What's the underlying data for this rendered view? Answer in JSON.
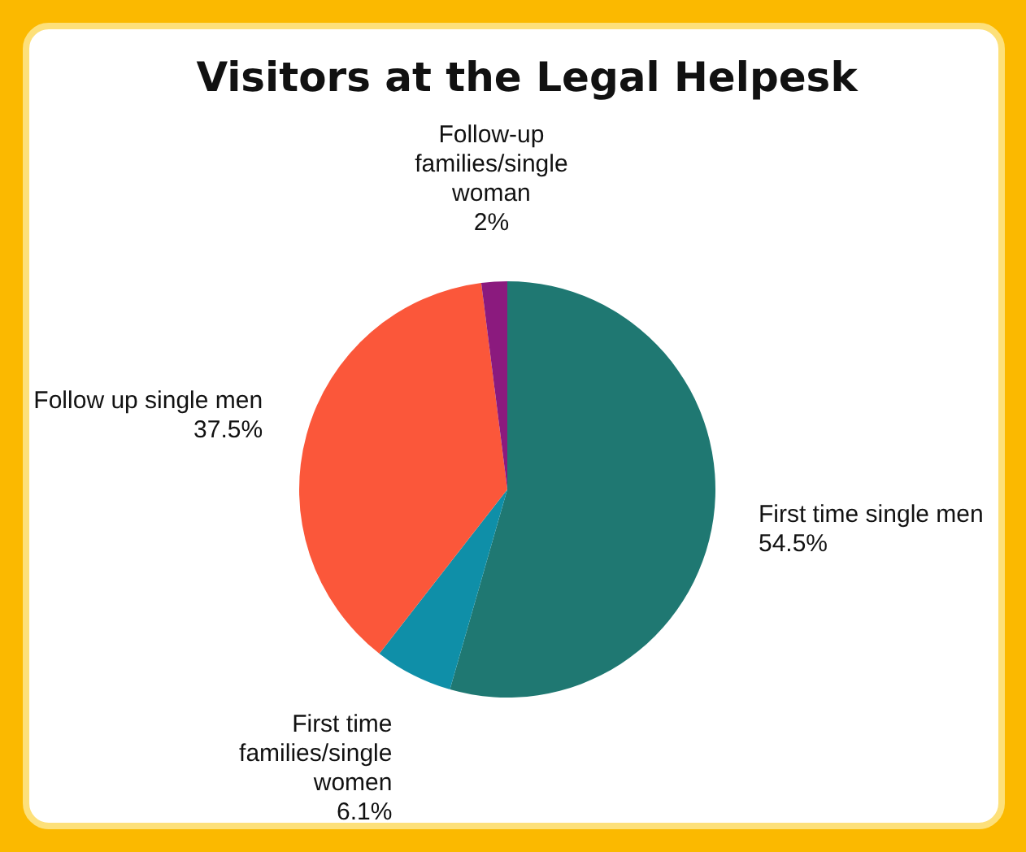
{
  "chart_data": {
    "type": "pie",
    "title": "Visitors at the Legal Helpesk",
    "categories": [
      "First time single men",
      "First time families/single women",
      "Follow up single men",
      "Follow-up families/single woman"
    ],
    "values": [
      54.5,
      6.1,
      37.5,
      2
    ],
    "value_labels": [
      "54.5%",
      "6.1%",
      "37.5%",
      "2%"
    ],
    "colors": [
      "#1f7872",
      "#0f8fa8",
      "#fb573a",
      "#8b1a7e"
    ]
  }
}
